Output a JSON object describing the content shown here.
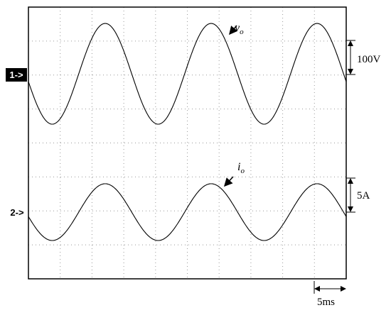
{
  "traces": [
    {
      "marker": "1->",
      "label": "v",
      "subscript": "o",
      "scale": "100V"
    },
    {
      "marker": "2->",
      "label": "i",
      "subscript": "o",
      "scale": "5A"
    }
  ],
  "timebase": "5ms"
}
